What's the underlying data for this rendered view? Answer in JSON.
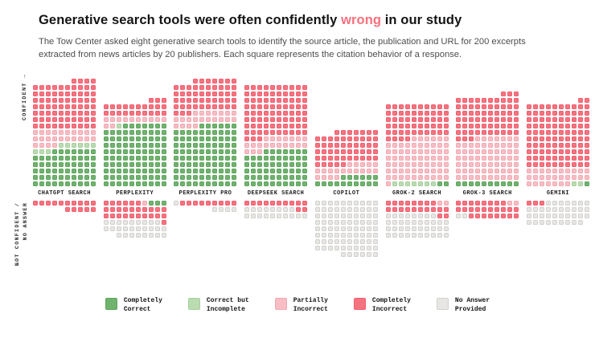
{
  "title": {
    "prefix": "Generative search tools were often confidently ",
    "highlight": "wrong",
    "suffix": " in our study",
    "highlight_color": "#f7707d"
  },
  "subtitle": "The Tow Center asked eight generative search tools to identify the source article, the publication and URL for 200 excerpts extracted from news articles by 20 publishers. Each square represents the citation behavior of a response.",
  "axis": {
    "confident_label": "CONFIDENT →",
    "not_confident_line1": "NOT CONFIDENT /",
    "not_confident_line2": "NO ANSWER",
    "not_confident_arrow": "↓"
  },
  "colors": {
    "completely_correct": {
      "fill": "#6fb36c",
      "border": "#5fa55f"
    },
    "correct_incomplete": {
      "fill": "#badcb0",
      "border": "#a8cf9e"
    },
    "partially_incorrect": {
      "fill": "#f9bdc4",
      "border": "#f3a8b1"
    },
    "completely_incorrect": {
      "fill": "#f7737f",
      "border": "#ef606f"
    },
    "no_answer": {
      "fill": "#e7e6e4",
      "border": "#d2d1cd"
    }
  },
  "legend": [
    {
      "key": "completely_correct",
      "line1": "Completely",
      "line2": "Correct"
    },
    {
      "key": "correct_incomplete",
      "line1": "Correct but",
      "line2": "Incomplete"
    },
    {
      "key": "partially_incorrect",
      "line1": "Partially",
      "line2": "Incorrect"
    },
    {
      "key": "completely_incorrect",
      "line1": "Completely",
      "line2": "Incorrect"
    },
    {
      "key": "no_answer",
      "line1": "No Answer",
      "line2": "Provided"
    }
  ],
  "chart_data": {
    "type": "waffle",
    "title": "Generative search tools were often confidently wrong in our study",
    "unit_note": "Each square represents the citation behavior of one response",
    "columns_per_row": 10,
    "fill_category_order": [
      "completely_correct",
      "correct_incomplete",
      "partially_incorrect",
      "completely_incorrect",
      "no_answer"
    ],
    "sections": {
      "top": "CONFIDENT",
      "bottom": "NOT CONFIDENT / NO ANSWER"
    },
    "tools": [
      {
        "label": "CHATGPT SEARCH",
        "confident": {
          "completely_correct": 57,
          "correct_incomplete": 9,
          "partially_incorrect": 24,
          "completely_incorrect": 74,
          "no_answer": 0
        },
        "not_confident": {
          "completely_correct": 0,
          "correct_incomplete": 0,
          "partially_incorrect": 0,
          "completely_incorrect": 15,
          "no_answer": 0
        }
      },
      {
        "label": "PERPLEXITY",
        "confident": {
          "completely_correct": 97,
          "correct_incomplete": 1,
          "partially_incorrect": 12,
          "completely_incorrect": 23,
          "no_answer": 0
        },
        "not_confident": {
          "completely_correct": 3,
          "correct_incomplete": 0,
          "partially_incorrect": 1,
          "completely_incorrect": 27,
          "no_answer": 27
        }
      },
      {
        "label": "PERPLEXITY PRO",
        "confident": {
          "completely_correct": 96,
          "correct_incomplete": 0,
          "partially_incorrect": 21,
          "completely_incorrect": 50,
          "no_answer": 0
        },
        "not_confident": {
          "completely_correct": 0,
          "correct_incomplete": 0,
          "partially_incorrect": 0,
          "completely_incorrect": 9,
          "no_answer": 5
        }
      },
      {
        "label": "DEEPSEEK SEARCH",
        "confident": {
          "completely_correct": 57,
          "correct_incomplete": 0,
          "partially_incorrect": 20,
          "completely_incorrect": 83,
          "no_answer": 0
        },
        "not_confident": {
          "completely_correct": 0,
          "correct_incomplete": 0,
          "partially_incorrect": 0,
          "completely_incorrect": 12,
          "no_answer": 18
        }
      },
      {
        "label": "COPILOT",
        "confident": {
          "completely_correct": 16,
          "correct_incomplete": 0,
          "partially_incorrect": 19,
          "completely_incorrect": 52,
          "no_answer": 0
        },
        "not_confident": {
          "completely_correct": 0,
          "correct_incomplete": 0,
          "partially_incorrect": 0,
          "completely_incorrect": 0,
          "no_answer": 86
        }
      },
      {
        "label": "GROK-2 SEARCH",
        "confident": {
          "completely_correct": 2,
          "correct_incomplete": 7,
          "partially_incorrect": 67,
          "completely_incorrect": 54,
          "no_answer": 0
        },
        "not_confident": {
          "completely_correct": 0,
          "correct_incomplete": 0,
          "partially_incorrect": 2,
          "completely_incorrect": 20,
          "no_answer": 38
        }
      },
      {
        "label": "GROK-3 SEARCH",
        "confident": {
          "completely_correct": 10,
          "correct_incomplete": 0,
          "partially_incorrect": 67,
          "completely_incorrect": 66,
          "no_answer": 0
        },
        "not_confident": {
          "completely_correct": 0,
          "correct_incomplete": 0,
          "partially_incorrect": 2,
          "completely_incorrect": 26,
          "no_answer": 2
        }
      },
      {
        "label": "GEMINI",
        "confident": {
          "completely_correct": 1,
          "correct_incomplete": 2,
          "partially_incorrect": 27,
          "completely_incorrect": 102,
          "no_answer": 0
        },
        "not_confident": {
          "completely_correct": 0,
          "correct_incomplete": 0,
          "partially_incorrect": 0,
          "completely_incorrect": 3,
          "no_answer": 36
        },
        "not_confident_fill": "ltr"
      }
    ]
  }
}
